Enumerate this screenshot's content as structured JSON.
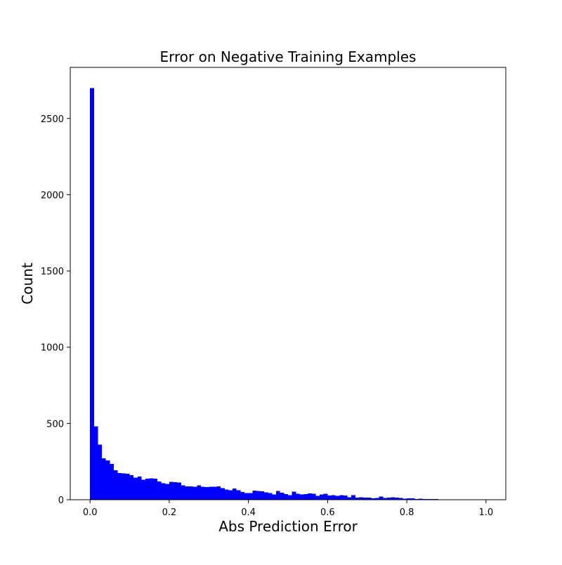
{
  "chart_data": {
    "type": "bar",
    "title": "Error on Negative Training Examples",
    "xlabel": "Abs Prediction Error",
    "ylabel": "Count",
    "xlim": [
      -0.05,
      1.05
    ],
    "ylim": [
      0,
      2835
    ],
    "xticks": [
      "0.0",
      "0.2",
      "0.4",
      "0.6",
      "0.8",
      "1.0"
    ],
    "yticks": [
      "0",
      "500",
      "1000",
      "1500",
      "2000",
      "2500"
    ],
    "bin_start": 0.0,
    "bin_width": 0.01,
    "values": [
      2700,
      480,
      362,
      272,
      258,
      235,
      193,
      175,
      172,
      170,
      160,
      145,
      153,
      132,
      138,
      140,
      138,
      120,
      108,
      103,
      117,
      115,
      112,
      94,
      88,
      87,
      86,
      94,
      84,
      83,
      86,
      86,
      87,
      75,
      67,
      63,
      74,
      61,
      51,
      43,
      44,
      60,
      58,
      56,
      49,
      43,
      34,
      58,
      47,
      36,
      31,
      54,
      38,
      34,
      37,
      42,
      39,
      26,
      34,
      40,
      27,
      30,
      26,
      30,
      28,
      15,
      29,
      14,
      15,
      14,
      14,
      9,
      12,
      20,
      11,
      14,
      15,
      13,
      11,
      7,
      10,
      9,
      5,
      8,
      4,
      4,
      5,
      4,
      3,
      3,
      2,
      2,
      1,
      1,
      1,
      1,
      1,
      0,
      1,
      1
    ],
    "bar_color": "#0000ff",
    "grid": false
  }
}
